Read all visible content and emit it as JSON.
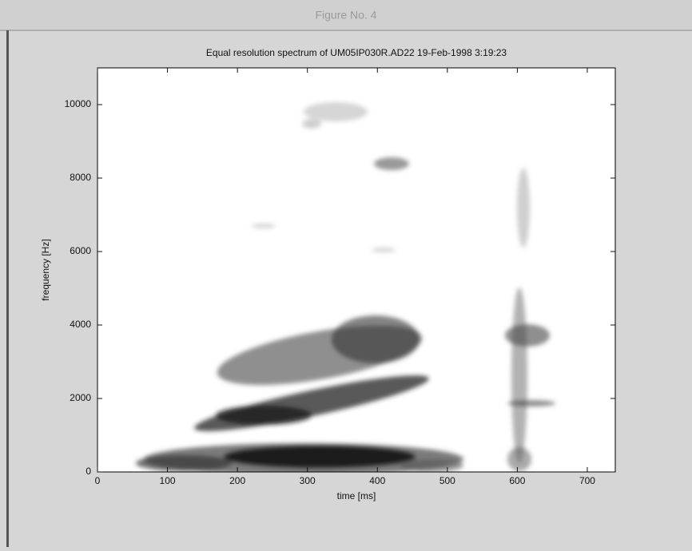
{
  "window": {
    "title": "Figure No. 4"
  },
  "chart_data": {
    "type": "spectrogram",
    "title": "Equal resolution spectrum of UM05IP030R.AD22 19-Feb-1998 3:19:23",
    "x_label": "time [ms]",
    "y_label": "frequency [Hz]",
    "xlim": [
      0,
      740
    ],
    "xticks": [
      0,
      100,
      200,
      300,
      400,
      500,
      600,
      700
    ],
    "ylim": [
      0,
      11000
    ],
    "yticks": [
      0,
      2000,
      4000,
      6000,
      8000,
      10000
    ],
    "color": "#111111"
  }
}
